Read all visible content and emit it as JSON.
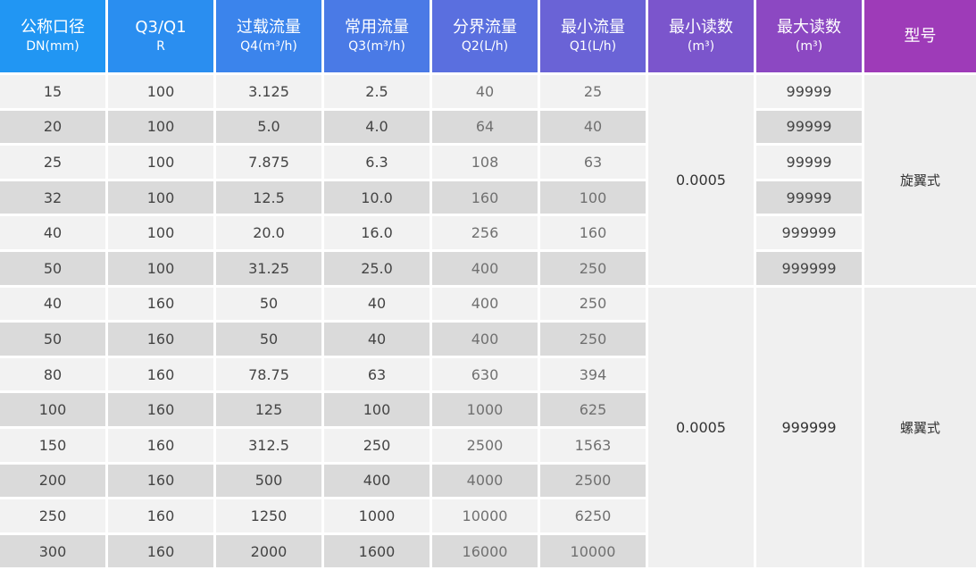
{
  "header": [
    {
      "line1": "公称口径",
      "line2": "DN(mm)",
      "color": "#2196f3"
    },
    {
      "line1": "Q3/Q1",
      "line2": "R",
      "color": "#2a8ef0"
    },
    {
      "line1": "过载流量",
      "line2": "Q4(m³/h)",
      "color": "#3b84ec"
    },
    {
      "line1": "常用流量",
      "line2": "Q3(m³/h)",
      "color": "#4a7ae6"
    },
    {
      "line1": "分界流量",
      "line2": "Q2(L/h)",
      "color": "#5a6fdf"
    },
    {
      "line1": "最小流量",
      "line2": "Q1(L/h)",
      "color": "#6a63d6"
    },
    {
      "line1": "最小读数",
      "line2": "(m³)",
      "color": "#7b55cc"
    },
    {
      "line1": "最大读数",
      "line2": "(m³)",
      "color": "#8c48c2"
    },
    {
      "line1": "型号",
      "line2": "",
      "color": "#9e3bb8"
    }
  ],
  "rows": [
    {
      "dn": "15",
      "r": "100",
      "q4": "3.125",
      "q3": "2.5",
      "q2": "40",
      "q1": "25",
      "max": "99999"
    },
    {
      "dn": "20",
      "r": "100",
      "q4": "5.0",
      "q3": "4.0",
      "q2": "64",
      "q1": "40",
      "max": "99999"
    },
    {
      "dn": "25",
      "r": "100",
      "q4": "7.875",
      "q3": "6.3",
      "q2": "108",
      "q1": "63",
      "max": "99999"
    },
    {
      "dn": "32",
      "r": "100",
      "q4": "12.5",
      "q3": "10.0",
      "q2": "160",
      "q1": "100",
      "max": "99999"
    },
    {
      "dn": "40",
      "r": "100",
      "q4": "20.0",
      "q3": "16.0",
      "q2": "256",
      "q1": "160",
      "max": "999999"
    },
    {
      "dn": "50",
      "r": "100",
      "q4": "31.25",
      "q3": "25.0",
      "q2": "400",
      "q1": "250",
      "max": "999999"
    },
    {
      "dn": "40",
      "r": "160",
      "q4": "50",
      "q3": "40",
      "q2": "400",
      "q1": "250"
    },
    {
      "dn": "50",
      "r": "160",
      "q4": "50",
      "q3": "40",
      "q2": "400",
      "q1": "250"
    },
    {
      "dn": "80",
      "r": "160",
      "q4": "78.75",
      "q3": "63",
      "q2": "630",
      "q1": "394"
    },
    {
      "dn": "100",
      "r": "160",
      "q4": "125",
      "q3": "100",
      "q2": "1000",
      "q1": "625"
    },
    {
      "dn": "150",
      "r": "160",
      "q4": "312.5",
      "q3": "250",
      "q2": "2500",
      "q1": "1563"
    },
    {
      "dn": "200",
      "r": "160",
      "q4": "500",
      "q3": "400",
      "q2": "4000",
      "q1": "2500"
    },
    {
      "dn": "250",
      "r": "160",
      "q4": "1250",
      "q3": "1000",
      "q2": "10000",
      "q1": "6250"
    },
    {
      "dn": "300",
      "r": "160",
      "q4": "2000",
      "q3": "1600",
      "q2": "16000",
      "q1": "10000"
    }
  ],
  "groups": {
    "rotary": {
      "min_reading": "0.0005",
      "type": "旋翼式"
    },
    "helical": {
      "min_reading": "0.0005",
      "max_reading": "999999",
      "type": "螺翼式"
    }
  }
}
